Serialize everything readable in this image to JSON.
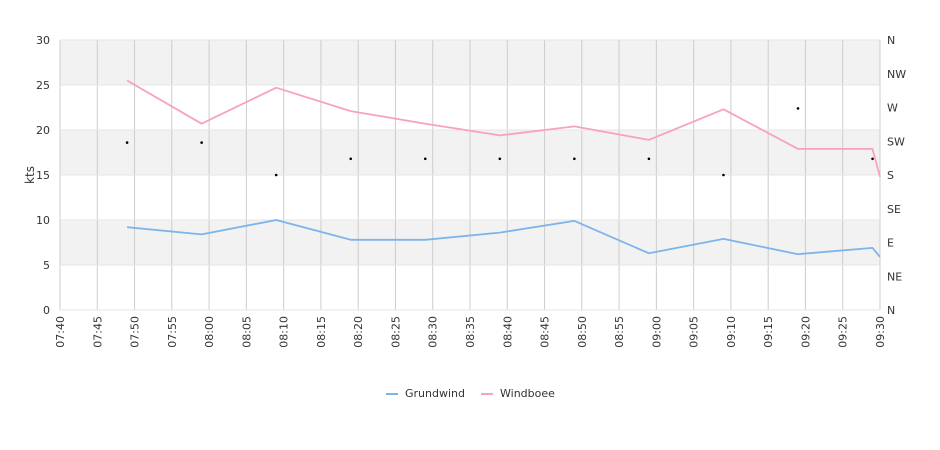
{
  "chart_data": {
    "type": "line",
    "ylabel": "kts",
    "ylim": [
      0,
      30
    ],
    "y_ticks": [
      "0",
      "5",
      "10",
      "15",
      "20",
      "25",
      "30"
    ],
    "y2_ticks": [
      "N",
      "NE",
      "E",
      "SE",
      "S",
      "SW",
      "W",
      "NW",
      "N"
    ],
    "x_ticks": [
      "07:40",
      "07:45",
      "07:50",
      "07:55",
      "08:00",
      "08:05",
      "08:10",
      "08:15",
      "08:20",
      "08:25",
      "08:30",
      "08:35",
      "08:40",
      "08:45",
      "08:50",
      "08:55",
      "09:00",
      "09:05",
      "09:10",
      "09:15",
      "09:20",
      "09:25",
      "09:30"
    ],
    "x_range": [
      "07:40",
      "09:30"
    ],
    "grid": true,
    "legend_position": "bottom",
    "colors": {
      "Grundwind": "#7cb5ec",
      "Windboee": "#f7a1c4",
      "direction": "#000000",
      "band": "#f2f2f2",
      "grid": "#cccccc"
    },
    "series": [
      {
        "name": "Grundwind",
        "x": [
          "07:49",
          "07:59",
          "08:09",
          "08:19",
          "08:29",
          "08:39",
          "08:49",
          "08:59",
          "09:09",
          "09:19",
          "09:29",
          "09:30"
        ],
        "values": [
          9.2,
          8.4,
          10.0,
          7.8,
          7.8,
          8.6,
          9.9,
          6.3,
          7.9,
          6.2,
          6.9,
          5.9
        ]
      },
      {
        "name": "Windboee",
        "x": [
          "07:49",
          "07:59",
          "08:09",
          "08:19",
          "08:29",
          "08:39",
          "08:49",
          "08:59",
          "09:09",
          "09:19",
          "09:29",
          "09:30"
        ],
        "values": [
          25.5,
          20.7,
          24.7,
          22.1,
          20.7,
          19.4,
          20.4,
          18.9,
          22.3,
          17.9,
          17.9,
          14.8
        ]
      }
    ],
    "direction_points": {
      "x": [
        "07:49",
        "07:59",
        "08:09",
        "08:19",
        "08:29",
        "08:39",
        "08:49",
        "08:59",
        "09:09",
        "09:19",
        "09:29"
      ],
      "values": [
        18.6,
        18.6,
        15.0,
        16.8,
        16.8,
        16.8,
        16.8,
        16.8,
        15.0,
        22.4,
        16.8
      ]
    }
  }
}
